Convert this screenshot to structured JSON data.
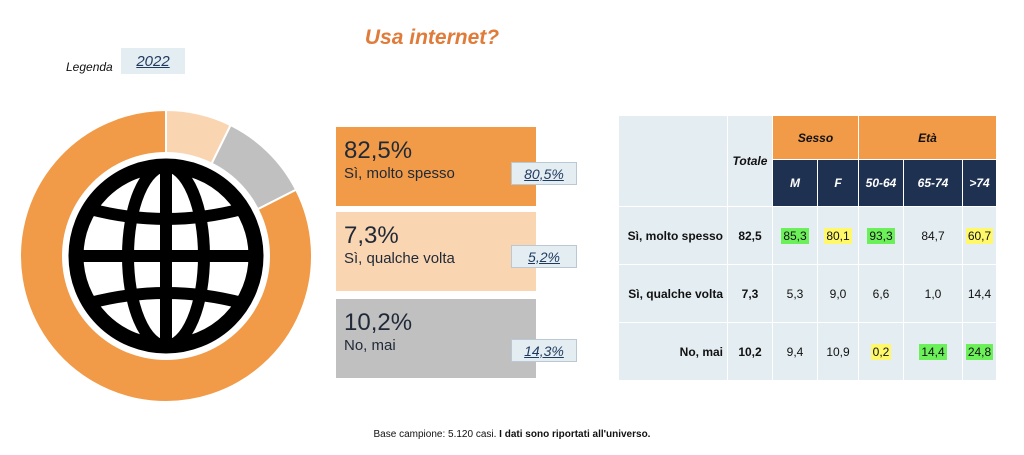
{
  "title": "Usa internet?",
  "legend": {
    "label": "Legenda",
    "year": "2022"
  },
  "colors": {
    "accent": "#F19A48",
    "light": "#FAD5B2",
    "grey": "#C0C0C0",
    "navy": "#1E3150",
    "panel": "#E4EDF2"
  },
  "icon": "globe-icon",
  "chart_data": {
    "type": "pie",
    "categories": [
      "Sì, molto spesso",
      "Sì, qualche volta",
      "No, mai"
    ],
    "values": [
      82.5,
      7.3,
      10.2
    ],
    "value_labels": [
      "82,5%",
      "7,3%",
      "10,2%"
    ],
    "previous_labels": [
      "80,5%",
      "5,2%",
      "14,3%"
    ],
    "previous_values": [
      80.5,
      5.2,
      14.3
    ]
  },
  "table": {
    "totale": "Totale",
    "sesso": "Sesso",
    "eta": "Età",
    "cols": [
      "M",
      "F",
      "50-64",
      "65-74",
      ">74"
    ],
    "rows": [
      {
        "label": "Sì, molto spesso",
        "total": "82,5",
        "cells": [
          "85,3",
          "80,1",
          "93,3",
          "84,7",
          "60,7"
        ]
      },
      {
        "label": "Sì, qualche volta",
        "total": "7,3",
        "cells": [
          "5,3",
          "9,0",
          "6,6",
          "1,0",
          "14,4"
        ]
      },
      {
        "label": "No, mai",
        "total": "10,2",
        "cells": [
          "9,4",
          "10,9",
          "0,2",
          "14,4",
          "24,8"
        ]
      }
    ]
  },
  "footer": {
    "prefix": "Base campione:",
    "cases": "5.120 casi.",
    "note": "I dati sono riportati all'universo."
  }
}
